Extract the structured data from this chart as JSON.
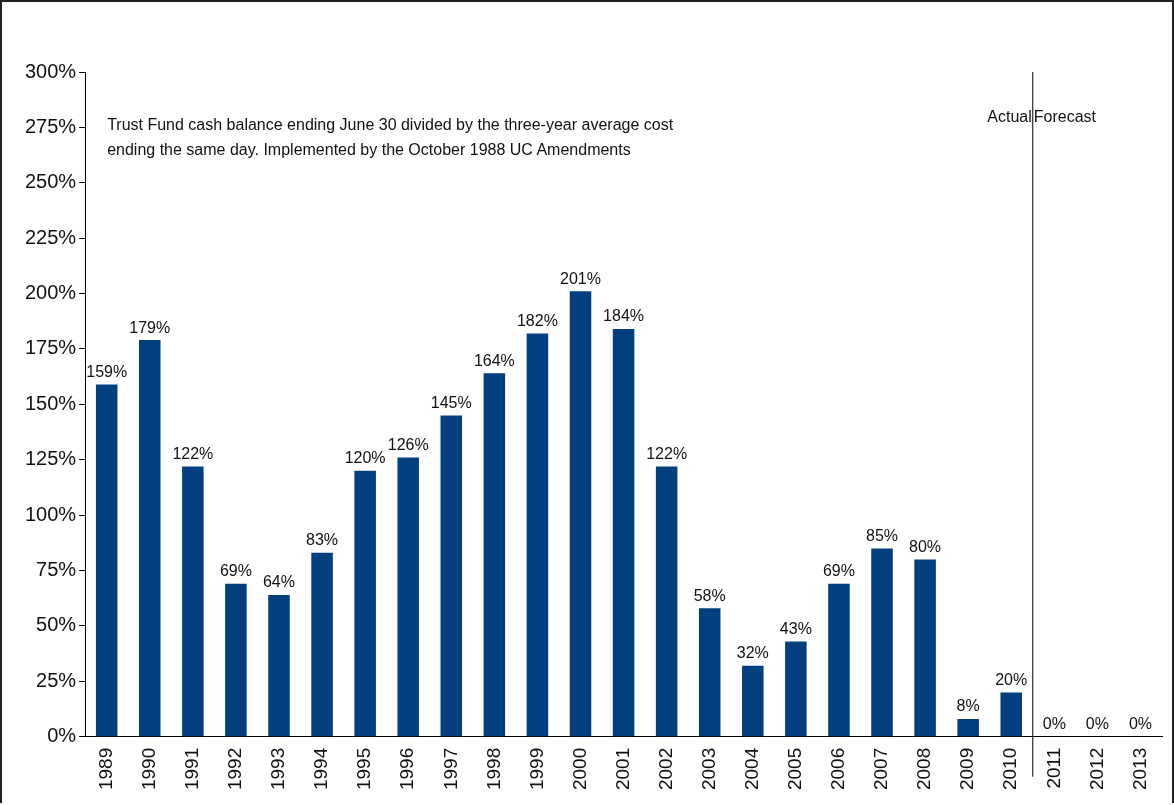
{
  "chart_data": {
    "type": "bar",
    "categories": [
      "1989",
      "1990",
      "1991",
      "1992",
      "1993",
      "1994",
      "1995",
      "1996",
      "1997",
      "1998",
      "1999",
      "2000",
      "2001",
      "2002",
      "2003",
      "2004",
      "2005",
      "2006",
      "2007",
      "2008",
      "2009",
      "2010",
      "2011",
      "2012",
      "2013"
    ],
    "values": [
      159,
      179,
      122,
      69,
      64,
      83,
      120,
      126,
      145,
      164,
      182,
      201,
      184,
      122,
      58,
      32,
      43,
      69,
      85,
      80,
      8,
      20,
      0,
      0,
      0
    ],
    "color": "#023f7e",
    "ylim": [
      0,
      300
    ],
    "yticks": [
      {
        "value": 0,
        "label": "0%"
      },
      {
        "value": 25,
        "label": "25%"
      },
      {
        "value": 50,
        "label": "50%"
      },
      {
        "value": 75,
        "label": "75%"
      },
      {
        "value": 100,
        "label": "100%"
      },
      {
        "value": 125,
        "label": "125%"
      },
      {
        "value": 150,
        "label": "150%"
      },
      {
        "value": 175,
        "label": "175%"
      },
      {
        "value": 200,
        "label": "200%"
      },
      {
        "value": 225,
        "label": "225%"
      },
      {
        "value": 250,
        "label": "250%"
      },
      {
        "value": 275,
        "label": "275%"
      },
      {
        "value": 300,
        "label": "300%"
      }
    ],
    "value_labels": [
      "159%",
      "179%",
      "122%",
      "69%",
      "64%",
      "83%",
      "120%",
      "126%",
      "145%",
      "164%",
      "182%",
      "201%",
      "184%",
      "122%",
      "58%",
      "32%",
      "43%",
      "69%",
      "85%",
      "80%",
      "8%",
      "20%",
      "0%",
      "0%",
      "0%"
    ],
    "annotations": [
      "Trust Fund cash balance ending June 30 divided by the three-year average cost\nending the same day. Implemented by the October 1988 UC Amendments",
      "Actual",
      "Forecast"
    ],
    "grid": false,
    "legend": false
  }
}
